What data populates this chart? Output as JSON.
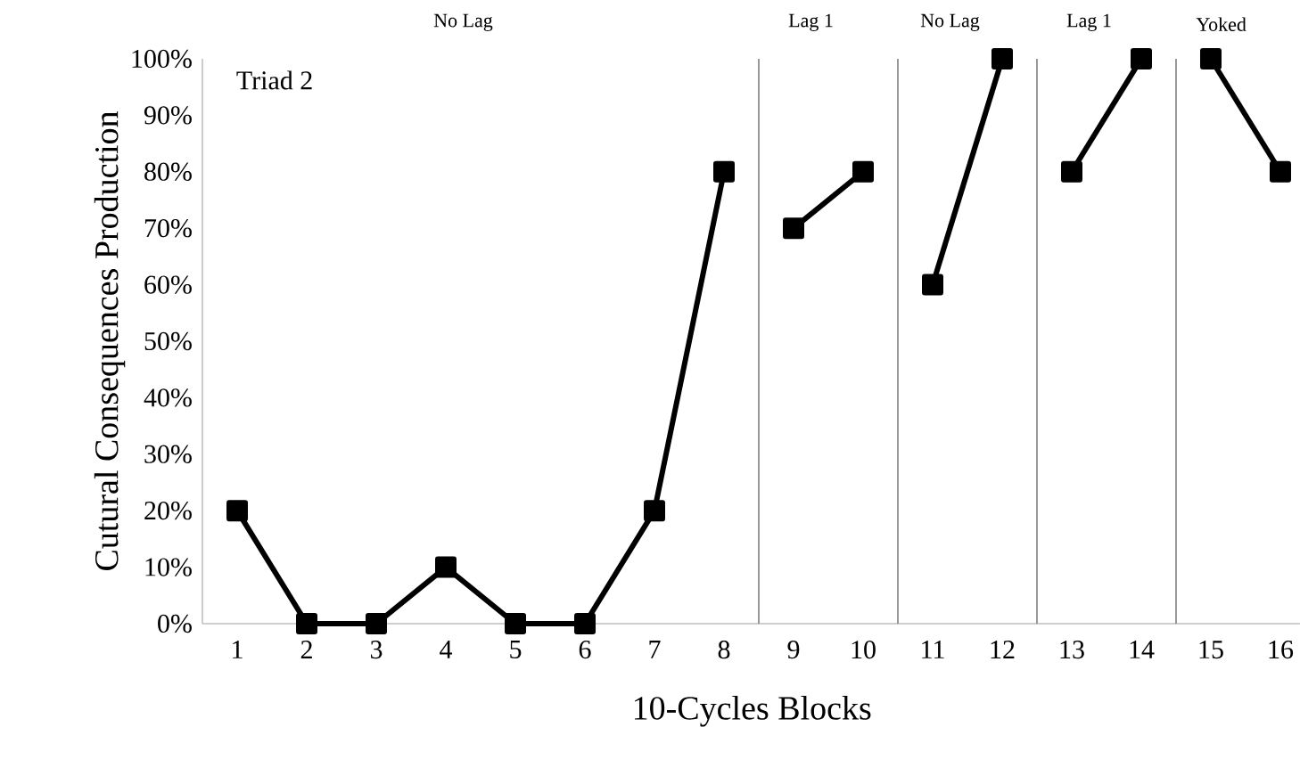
{
  "chart_data": {
    "type": "line",
    "xlabel": "10-Cycles Blocks",
    "ylabel": "Cutural Consequences Production",
    "x": [
      1,
      2,
      3,
      4,
      5,
      6,
      7,
      8,
      9,
      10,
      11,
      12,
      13,
      14,
      15,
      16
    ],
    "series": [
      {
        "color": "#000000",
        "values": [
          20,
          0,
          0,
          10,
          0,
          0,
          20,
          80,
          null,
          null,
          null,
          null,
          null,
          null,
          null,
          null
        ]
      },
      {
        "color": "#000000",
        "values": [
          null,
          null,
          null,
          null,
          null,
          null,
          null,
          null,
          70,
          80,
          null,
          null,
          null,
          null,
          null,
          null
        ]
      },
      {
        "color": "#000000",
        "values": [
          null,
          null,
          null,
          null,
          null,
          null,
          null,
          null,
          null,
          null,
          60,
          100,
          null,
          null,
          null,
          null
        ]
      },
      {
        "color": "#000000",
        "values": [
          null,
          null,
          null,
          null,
          null,
          null,
          null,
          null,
          null,
          null,
          null,
          null,
          80,
          100,
          null,
          null
        ]
      },
      {
        "color": "#000000",
        "values": [
          null,
          null,
          null,
          null,
          null,
          null,
          null,
          null,
          null,
          null,
          null,
          null,
          null,
          null,
          100,
          80
        ]
      }
    ],
    "xlim": [
      0.5,
      16.3
    ],
    "xticks": [
      1,
      2,
      3,
      4,
      5,
      6,
      7,
      8,
      9,
      10,
      11,
      12,
      13,
      14,
      15,
      16
    ],
    "ylim": [
      0,
      100
    ],
    "yticks": [
      {
        "value": 0,
        "label": "0%"
      },
      {
        "value": 10,
        "label": "10%"
      },
      {
        "value": 20,
        "label": "20%"
      },
      {
        "value": 30,
        "label": "30%"
      },
      {
        "value": 40,
        "label": "40%"
      },
      {
        "value": 50,
        "label": "50%"
      },
      {
        "value": 60,
        "label": "60%"
      },
      {
        "value": 70,
        "label": "70%"
      },
      {
        "value": 80,
        "label": "80%"
      },
      {
        "value": 90,
        "label": "90%"
      },
      {
        "value": 100,
        "label": "100%"
      }
    ],
    "ref_lines": [
      {
        "axis": "x",
        "value": 8.5,
        "color": "#808080"
      },
      {
        "axis": "x",
        "value": 10.5,
        "color": "#808080"
      },
      {
        "axis": "x",
        "value": 12.5,
        "color": "#808080"
      },
      {
        "axis": "x",
        "value": 14.5,
        "color": "#808080"
      }
    ],
    "annotations": [
      "Triad 2",
      "No Lag",
      "Lag 1",
      "No Lag",
      "Lag 1",
      "Yoked"
    ],
    "marker": "square",
    "line_style": "solid"
  }
}
